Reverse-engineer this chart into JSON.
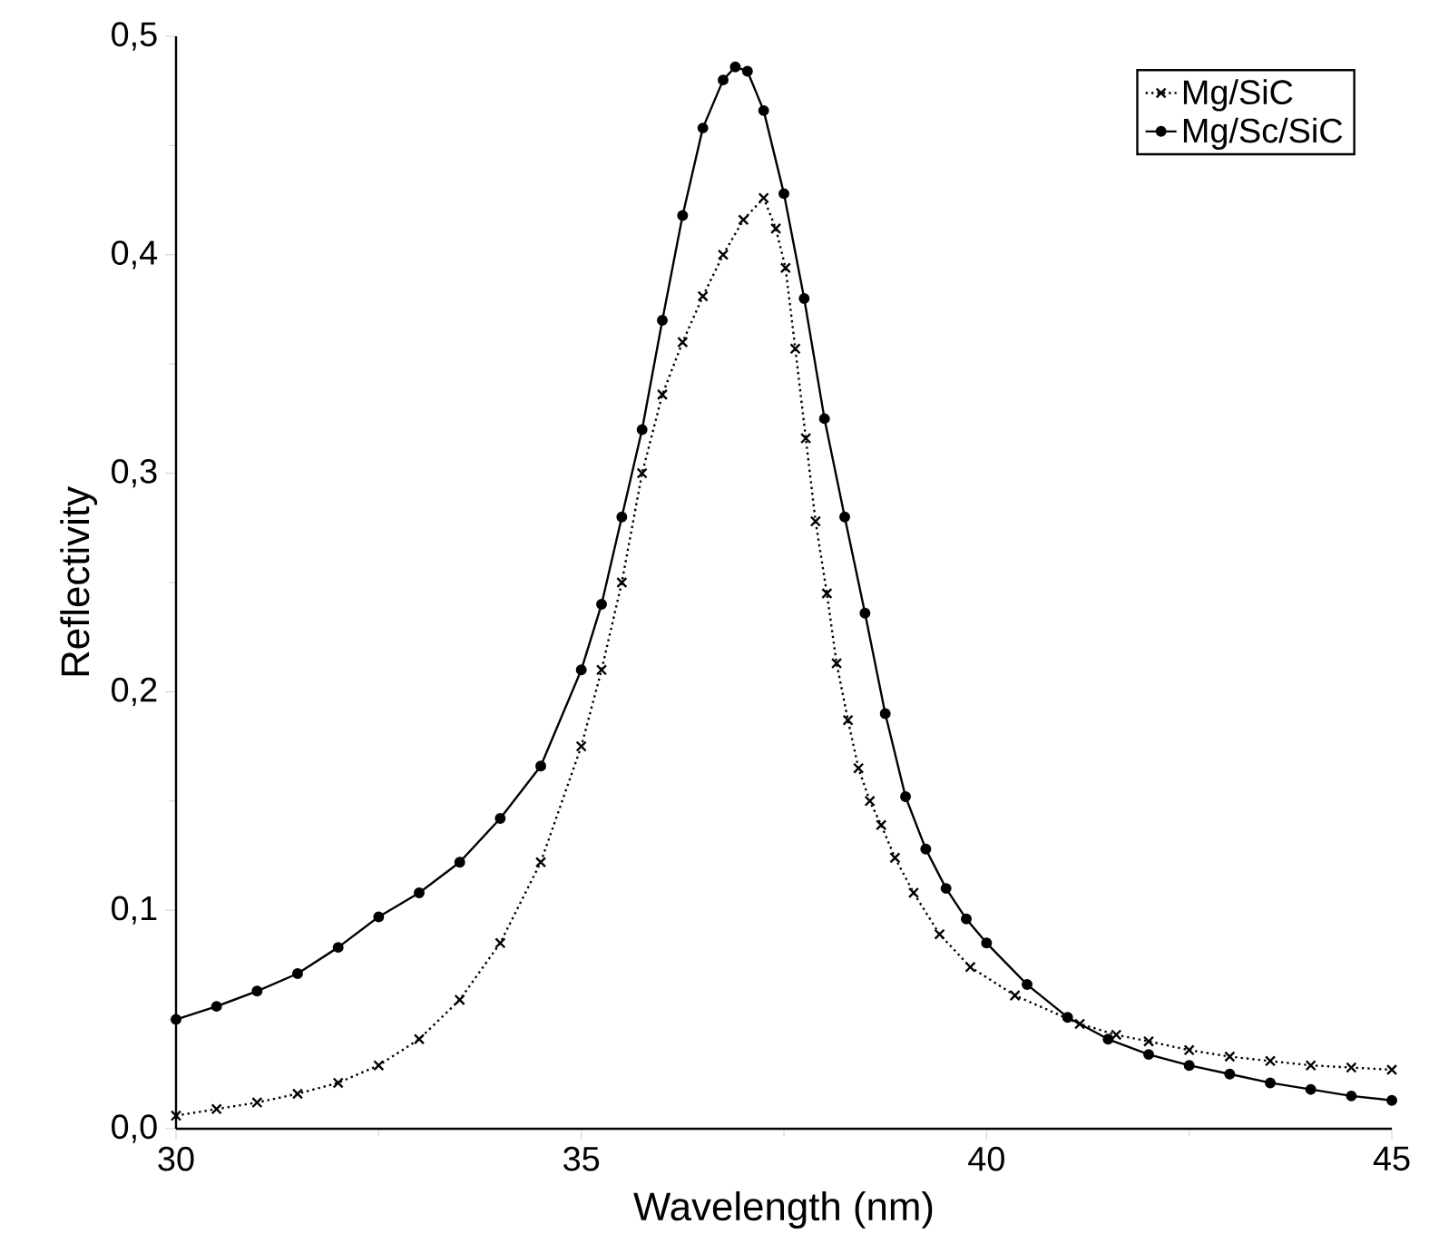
{
  "chart_data": {
    "type": "line",
    "xlabel": "Wavelength (nm)",
    "ylabel": "Reflectivity",
    "xlim": [
      30,
      45
    ],
    "xticks": [
      30,
      35,
      40,
      45
    ],
    "ylim": [
      0,
      0.5
    ],
    "yticks": [
      {
        "value": 0,
        "label": "0,0"
      },
      {
        "value": 0.1,
        "label": "0,1"
      },
      {
        "value": 0.2,
        "label": "0,2"
      },
      {
        "value": 0.3,
        "label": "0,3"
      },
      {
        "value": 0.4,
        "label": "0,4"
      },
      {
        "value": 0.5,
        "label": "0,5"
      }
    ],
    "grid": false,
    "legend": "top right",
    "series": [
      {
        "name": "Mg/SiC",
        "color": "#000000",
        "marker": "cross",
        "line_style": "dotted",
        "x": [
          30,
          30.5,
          31,
          31.5,
          32,
          32.5,
          33,
          33.5,
          34,
          34.5,
          35,
          35.25,
          35.5,
          35.75,
          36,
          36.25,
          36.5,
          36.75,
          37,
          37.25,
          37.4,
          37.52,
          37.64,
          37.77,
          37.89,
          38.03,
          38.15,
          38.29,
          38.42,
          38.56,
          38.7,
          38.87,
          39.1,
          39.42,
          39.8,
          40.35,
          41.15,
          41.6,
          42,
          42.5,
          43,
          43.5,
          44,
          44.5,
          45
        ],
        "values": [
          0.006,
          0.009,
          0.012,
          0.016,
          0.021,
          0.029,
          0.041,
          0.059,
          0.085,
          0.122,
          0.175,
          0.21,
          0.25,
          0.3,
          0.336,
          0.36,
          0.381,
          0.4,
          0.416,
          0.426,
          0.412,
          0.394,
          0.357,
          0.316,
          0.278,
          0.245,
          0.213,
          0.187,
          0.165,
          0.15,
          0.139,
          0.124,
          0.108,
          0.089,
          0.074,
          0.061,
          0.048,
          0.043,
          0.04,
          0.036,
          0.033,
          0.031,
          0.029,
          0.028,
          0.027
        ]
      },
      {
        "name": "Mg/Sc/SiC",
        "color": "#000000",
        "marker": "circle",
        "line_style": "solid",
        "x": [
          30,
          30.5,
          31,
          31.5,
          32,
          32.5,
          33,
          33.5,
          34,
          34.5,
          35,
          35.25,
          35.5,
          35.75,
          36,
          36.25,
          36.5,
          36.75,
          36.9,
          37.05,
          37.25,
          37.5,
          37.75,
          38,
          38.25,
          38.5,
          38.75,
          39,
          39.25,
          39.5,
          39.75,
          40,
          40.5,
          41,
          41.5,
          42,
          42.5,
          43,
          43.5,
          44,
          44.5,
          45
        ],
        "values": [
          0.05,
          0.056,
          0.063,
          0.071,
          0.083,
          0.097,
          0.108,
          0.122,
          0.142,
          0.166,
          0.21,
          0.24,
          0.28,
          0.32,
          0.37,
          0.418,
          0.458,
          0.48,
          0.486,
          0.484,
          0.466,
          0.428,
          0.38,
          0.325,
          0.28,
          0.236,
          0.19,
          0.152,
          0.128,
          0.11,
          0.096,
          0.085,
          0.066,
          0.051,
          0.041,
          0.034,
          0.029,
          0.025,
          0.021,
          0.018,
          0.015,
          0.013
        ]
      }
    ]
  }
}
